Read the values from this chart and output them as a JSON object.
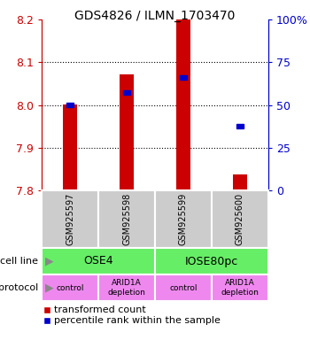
{
  "title": "GDS4826 / ILMN_1703470",
  "samples": [
    "GSM925597",
    "GSM925598",
    "GSM925599",
    "GSM925600"
  ],
  "bar_values": [
    8.002,
    8.072,
    8.2,
    7.838
  ],
  "percentile_values": [
    8.001,
    8.03,
    8.065,
    7.95
  ],
  "ylim": [
    7.8,
    8.2
  ],
  "yticks": [
    7.8,
    7.9,
    8.0,
    8.1,
    8.2
  ],
  "right_yticks_pct": [
    0,
    25,
    50,
    75,
    100
  ],
  "right_ylabels": [
    "0",
    "25",
    "50",
    "75",
    "100%"
  ],
  "bar_color": "#cc0000",
  "blue_color": "#0000cc",
  "bar_width": 0.25,
  "cell_line_labels": [
    "OSE4",
    "IOSE80pc"
  ],
  "cell_line_color": "#66ee66",
  "protocol_labels": [
    "control",
    "ARID1A\ndepletion",
    "control",
    "ARID1A\ndepletion"
  ],
  "protocol_color": "#ee88ee",
  "sample_box_color": "#cccccc",
  "legend_red_label": "transformed count",
  "legend_blue_label": "percentile rank within the sample",
  "left_axis_color": "#cc0000",
  "right_axis_color": "#0000cc",
  "grid_color": "black",
  "grid_linestyle": "dotted",
  "grid_linewidth": 0.8
}
